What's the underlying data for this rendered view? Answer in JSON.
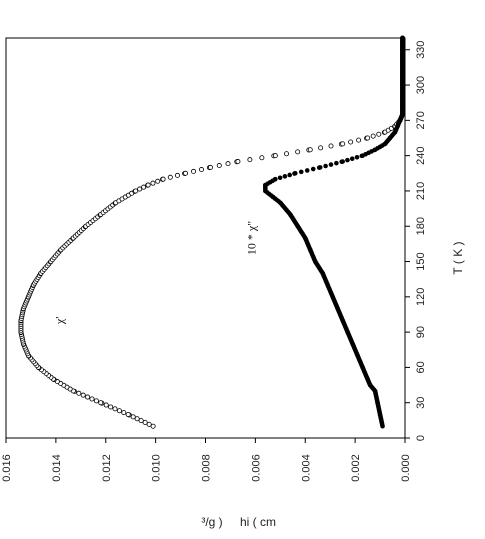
{
  "chart_data": {
    "type": "scatter",
    "orientation": "rotated-90",
    "title": "",
    "xlabel": "T ( K )",
    "ylabel": "hi ( cm",
    "ylabel_extra": "³/g )",
    "xlim": [
      0,
      340
    ],
    "ylim": [
      0,
      0.016
    ],
    "x_ticks": [
      "0",
      "30",
      "60",
      "90",
      "120",
      "150",
      "180",
      "210",
      "240",
      "270",
      "300",
      "330"
    ],
    "y_ticks": [
      "0.016",
      "0.014",
      "0.012",
      "0.010",
      "0.008",
      "0.006",
      "0.004",
      "0.002",
      "0.000"
    ],
    "grid": false,
    "series": [
      {
        "name": "χ'",
        "marker": "open-circle",
        "x": [
          10,
          20,
          30,
          40,
          50,
          60,
          70,
          80,
          90,
          100,
          110,
          120,
          130,
          140,
          150,
          160,
          170,
          180,
          190,
          200,
          210,
          215,
          220,
          225,
          230,
          235,
          240,
          245,
          250,
          255,
          260,
          265,
          270,
          275,
          280,
          290,
          300,
          310,
          320,
          330,
          340
        ],
        "y": [
          0.0101,
          0.0111,
          0.0122,
          0.0133,
          0.0141,
          0.0147,
          0.0151,
          0.0153,
          0.0154,
          0.0154,
          0.0153,
          0.0151,
          0.0149,
          0.0146,
          0.0142,
          0.0138,
          0.0133,
          0.0128,
          0.0122,
          0.0116,
          0.0108,
          0.0103,
          0.0097,
          0.0088,
          0.0078,
          0.0067,
          0.0052,
          0.0038,
          0.0025,
          0.0015,
          0.0008,
          0.0004,
          0.0002,
          0.0001,
          0.0001,
          0.0001,
          0.0001,
          0.0001,
          0.0001,
          0.0001,
          0.0001
        ]
      },
      {
        "name": "10 * χ\"",
        "marker": "filled-circle",
        "x": [
          10,
          20,
          30,
          40,
          45,
          50,
          60,
          70,
          80,
          90,
          100,
          110,
          120,
          130,
          140,
          150,
          160,
          170,
          180,
          190,
          200,
          205,
          210,
          215,
          220,
          225,
          230,
          235,
          240,
          245,
          250,
          255,
          260,
          265,
          270,
          275,
          280,
          290,
          300,
          310,
          320,
          330,
          340
        ],
        "y": [
          0.0009,
          0.001,
          0.0011,
          0.0012,
          0.0014,
          0.0015,
          0.0017,
          0.0019,
          0.0021,
          0.0023,
          0.0025,
          0.0027,
          0.0029,
          0.0031,
          0.0033,
          0.0036,
          0.0038,
          0.004,
          0.0043,
          0.0046,
          0.005,
          0.0053,
          0.0056,
          0.0056,
          0.0052,
          0.0044,
          0.0034,
          0.0025,
          0.0017,
          0.0012,
          0.0008,
          0.0006,
          0.0004,
          0.0003,
          0.0002,
          0.0001,
          0.0001,
          0.0001,
          0.0001,
          0.0001,
          0.0001,
          0.0001,
          0.0001
        ]
      }
    ],
    "annotations": [
      {
        "text": "χ'",
        "x": 100,
        "y": 0.0137
      },
      {
        "text": "10 * χ\"",
        "x": 170,
        "y": 0.006
      }
    ]
  }
}
